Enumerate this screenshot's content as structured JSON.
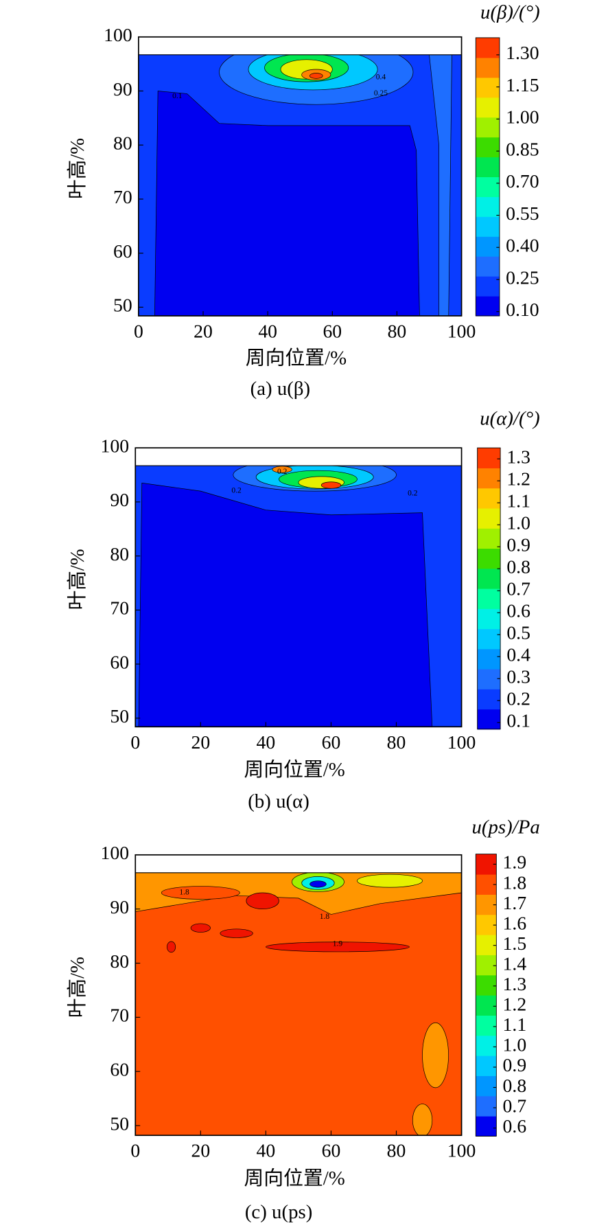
{
  "chart_data": [
    {
      "type": "contour",
      "caption": "(a) u(β)",
      "colorbar_title": "u(β)/(°)",
      "x_label": "周向位置/%",
      "y_label": "叶高/%",
      "xlim": [
        0,
        100
      ],
      "xticks": [
        0,
        20,
        40,
        60,
        80,
        100
      ],
      "ylim": [
        48.4,
        100
      ],
      "yticks": [
        50,
        60,
        70,
        80,
        90,
        100
      ],
      "colorbar_lim": [
        0.08,
        1.38
      ],
      "colorbar_ticks": [
        {
          "value": 0.1,
          "label": "0.10"
        },
        {
          "value": 0.25,
          "label": "0.25"
        },
        {
          "value": 0.4,
          "label": "0.40"
        },
        {
          "value": 0.55,
          "label": "0.55"
        },
        {
          "value": 0.7,
          "label": "0.70"
        },
        {
          "value": 0.85,
          "label": "0.85"
        },
        {
          "value": 1.0,
          "label": "1.00"
        },
        {
          "value": 1.15,
          "label": "1.15"
        },
        {
          "value": 1.3,
          "label": "1.30"
        }
      ],
      "colors": [
        "#0000f0",
        "#0a3cff",
        "#1e6eff",
        "#0096ff",
        "#00c8ff",
        "#00f0e6",
        "#00ffa0",
        "#00e650",
        "#3cdc00",
        "#a0f000",
        "#e6f000",
        "#ffc800",
        "#ff8200",
        "#ff3c00"
      ],
      "contour_labels": [
        0.4,
        0.25,
        0.1
      ]
    },
    {
      "type": "contour",
      "caption": "(b) u(α)",
      "colorbar_title": "u(α)/(°)",
      "x_label": "周向位置/%",
      "y_label": "叶高/%",
      "xlim": [
        0,
        100
      ],
      "xticks": [
        0,
        20,
        40,
        60,
        80,
        100
      ],
      "ylim": [
        48.4,
        100
      ],
      "yticks": [
        50,
        60,
        70,
        80,
        90,
        100
      ],
      "colorbar_lim": [
        0.07,
        1.35
      ],
      "colorbar_ticks": [
        0.1,
        0.2,
        0.3,
        0.4,
        0.5,
        0.6,
        0.7,
        0.8,
        0.9,
        {
          "value": 1.0,
          "label": "1.0"
        },
        1.1,
        1.2,
        1.3
      ],
      "colors": [
        "#0000f0",
        "#0a3cff",
        "#1e6eff",
        "#0096ff",
        "#00c8ff",
        "#00f0e6",
        "#00ffa0",
        "#00e650",
        "#3cdc00",
        "#a0f000",
        "#e6f000",
        "#ffc800",
        "#ff8200",
        "#ff3c00"
      ],
      "contour_labels": [
        0.2,
        0.2,
        0.2
      ]
    },
    {
      "type": "contour",
      "caption": "(c) u(ps)",
      "colorbar_title": "u(ps)/Pa",
      "x_label": "周向位置/%",
      "y_label": "叶高/%",
      "xlim": [
        0,
        100
      ],
      "xticks": [
        0,
        20,
        40,
        60,
        80,
        100
      ],
      "ylim": [
        48.2,
        100
      ],
      "yticks": [
        50,
        60,
        70,
        80,
        90,
        100
      ],
      "colorbar_lim": [
        0.56,
        1.95
      ],
      "colorbar_ticks": [
        0.6,
        0.7,
        0.8,
        0.9,
        {
          "value": 1.0,
          "label": "1.0"
        },
        1.1,
        1.2,
        1.3,
        1.4,
        1.5,
        1.6,
        1.7,
        1.8,
        1.9
      ],
      "colors": [
        "#0000f0",
        "#1e6eff",
        "#0096ff",
        "#00c8ff",
        "#00f0e6",
        "#00ffa0",
        "#00e650",
        "#3cdc00",
        "#a0f000",
        "#e6f000",
        "#ffc800",
        "#ff9600",
        "#ff5000",
        "#f01400"
      ],
      "contour_labels": [
        1.9,
        1.8,
        1.8
      ]
    }
  ]
}
